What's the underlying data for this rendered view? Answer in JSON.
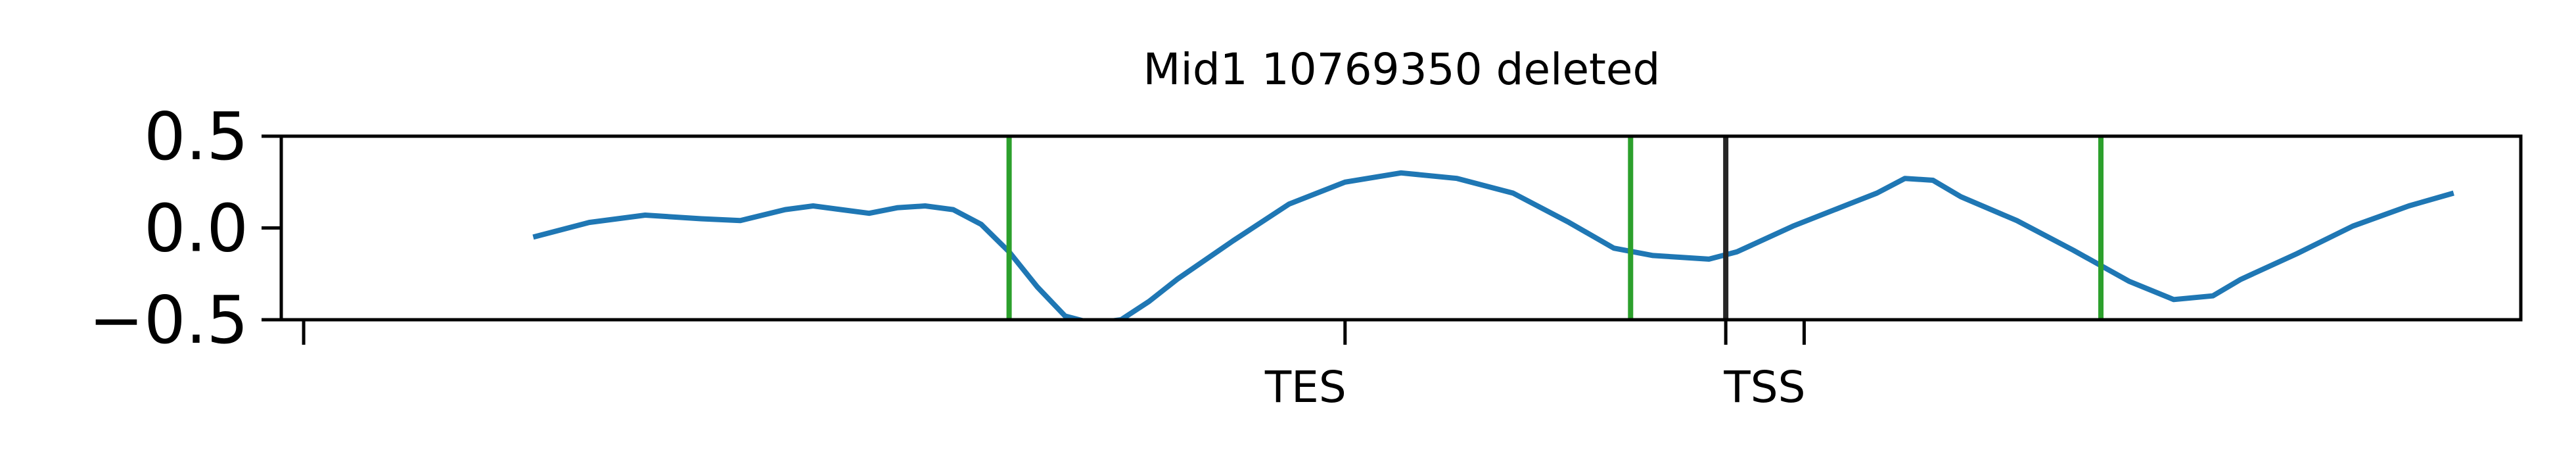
{
  "chart_data": {
    "type": "line",
    "title": "Mid1 10769350 deleted",
    "xlabel": "",
    "ylabel": "",
    "xlim": [
      -1.0,
      3.0
    ],
    "ylim": [
      -0.5,
      0.5
    ],
    "yticks": [
      {
        "value": 0.5,
        "label": "0.5"
      },
      {
        "value": 0.0,
        "label": "0.0"
      },
      {
        "value": -0.5,
        "label": "−0.5"
      }
    ],
    "xticks": [
      {
        "value": -0.96,
        "label": ""
      },
      {
        "value": 0.9,
        "label": "TES"
      },
      {
        "value": 1.58,
        "label": ""
      },
      {
        "value": 1.72,
        "label": "TSS"
      }
    ],
    "grid": false,
    "legend": "none",
    "series": [
      {
        "color": "#1f77b4",
        "x": [
          -0.55,
          -0.45,
          -0.35,
          -0.25,
          -0.18,
          -0.1,
          -0.05,
          0.0,
          0.05,
          0.1,
          0.15,
          0.2,
          0.25,
          0.3,
          0.35,
          0.4,
          0.45,
          0.5,
          0.55,
          0.6,
          0.7,
          0.8,
          0.9,
          1.0,
          1.1,
          1.2,
          1.3,
          1.38,
          1.45,
          1.5,
          1.55,
          1.6,
          1.7,
          1.8,
          1.85,
          1.9,
          1.95,
          2.0,
          2.1,
          2.2,
          2.3,
          2.38,
          2.45,
          2.5,
          2.6,
          2.7,
          2.8,
          2.88
        ],
        "y": [
          -0.05,
          0.03,
          0.07,
          0.05,
          0.04,
          0.1,
          0.12,
          0.1,
          0.08,
          0.11,
          0.12,
          0.1,
          0.02,
          -0.13,
          -0.32,
          -0.48,
          -0.52,
          -0.5,
          -0.4,
          -0.28,
          -0.07,
          0.13,
          0.25,
          0.3,
          0.27,
          0.19,
          0.03,
          -0.11,
          -0.15,
          -0.16,
          -0.17,
          -0.13,
          0.01,
          0.13,
          0.19,
          0.27,
          0.26,
          0.17,
          0.04,
          -0.12,
          -0.29,
          -0.39,
          -0.37,
          -0.28,
          -0.14,
          0.01,
          0.12,
          0.19
        ]
      }
    ],
    "vlines": [
      {
        "x": 0.3,
        "color": "#2ca02c"
      },
      {
        "x": 1.41,
        "color": "#2ca02c"
      },
      {
        "x": 1.58,
        "color": "#262626"
      },
      {
        "x": 2.25,
        "color": "#2ca02c"
      }
    ]
  }
}
